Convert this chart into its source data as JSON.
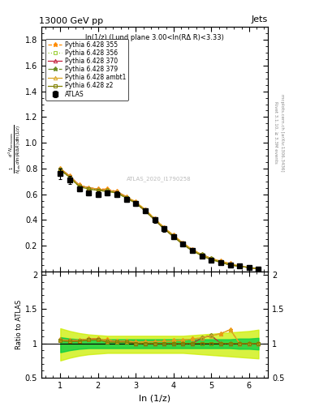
{
  "title": "13000 GeV pp",
  "title_right": "Jets",
  "annotation": "ln(1/z) (Lund plane 3.00<ln(RΔ R)<3.33)",
  "watermark": "ATLAS_2020_I1790258",
  "ylabel_main": "$\\frac{1}{N_{jets}}\\frac{d^2 N_{emissions}}{d\\ln(R/\\Delta R)\\,d\\ln(1/z)}$",
  "ylabel_ratio": "Ratio to ATLAS",
  "xlabel": "ln (1/z)",
  "right_label_top": "Rivet 3.1.10, ≥ 3.3M events",
  "right_label_bot": "mcplots.cern.ch [arXiv:1306.3436]",
  "xlim": [
    0.5,
    6.5
  ],
  "ylim_main": [
    0.0,
    1.9
  ],
  "ylim_ratio": [
    0.5,
    2.05
  ],
  "yticks_main": [
    0.2,
    0.4,
    0.6,
    0.8,
    1.0,
    1.2,
    1.4,
    1.6,
    1.8
  ],
  "yticks_ratio": [
    0.5,
    1.0,
    1.5,
    2.0
  ],
  "x_data": [
    1.0,
    1.25,
    1.5,
    1.75,
    2.0,
    2.25,
    2.5,
    2.75,
    3.0,
    3.25,
    3.5,
    3.75,
    4.0,
    4.25,
    4.5,
    4.75,
    5.0,
    5.25,
    5.5,
    5.75,
    6.0,
    6.25
  ],
  "atlas_y": [
    0.76,
    0.71,
    0.64,
    0.61,
    0.6,
    0.61,
    0.6,
    0.56,
    0.53,
    0.47,
    0.4,
    0.33,
    0.27,
    0.21,
    0.16,
    0.12,
    0.09,
    0.07,
    0.05,
    0.04,
    0.03,
    0.02
  ],
  "atlas_yerr": [
    0.04,
    0.03,
    0.02,
    0.02,
    0.02,
    0.02,
    0.02,
    0.02,
    0.02,
    0.02,
    0.02,
    0.02,
    0.02,
    0.01,
    0.01,
    0.01,
    0.01,
    0.01,
    0.005,
    0.005,
    0.005,
    0.005
  ],
  "py355_y": [
    0.8,
    0.74,
    0.67,
    0.65,
    0.64,
    0.64,
    0.62,
    0.58,
    0.54,
    0.48,
    0.41,
    0.34,
    0.28,
    0.22,
    0.17,
    0.13,
    0.1,
    0.08,
    0.06,
    0.04,
    0.03,
    0.02
  ],
  "py356_y": [
    0.79,
    0.73,
    0.66,
    0.64,
    0.63,
    0.63,
    0.61,
    0.57,
    0.53,
    0.47,
    0.4,
    0.33,
    0.27,
    0.21,
    0.16,
    0.13,
    0.1,
    0.07,
    0.05,
    0.04,
    0.03,
    0.02
  ],
  "py370_y": [
    0.8,
    0.74,
    0.67,
    0.65,
    0.64,
    0.63,
    0.62,
    0.58,
    0.53,
    0.47,
    0.4,
    0.33,
    0.27,
    0.21,
    0.16,
    0.13,
    0.1,
    0.07,
    0.05,
    0.04,
    0.03,
    0.02
  ],
  "py379_y": [
    0.79,
    0.73,
    0.66,
    0.64,
    0.63,
    0.63,
    0.61,
    0.57,
    0.53,
    0.47,
    0.4,
    0.33,
    0.27,
    0.21,
    0.16,
    0.13,
    0.1,
    0.07,
    0.05,
    0.04,
    0.03,
    0.02
  ],
  "pyambt1_y": [
    0.8,
    0.74,
    0.67,
    0.65,
    0.64,
    0.63,
    0.62,
    0.58,
    0.54,
    0.48,
    0.41,
    0.34,
    0.28,
    0.22,
    0.17,
    0.13,
    0.1,
    0.08,
    0.06,
    0.04,
    0.03,
    0.02
  ],
  "pyz2_y": [
    0.79,
    0.73,
    0.66,
    0.64,
    0.63,
    0.62,
    0.61,
    0.57,
    0.53,
    0.47,
    0.4,
    0.33,
    0.27,
    0.21,
    0.16,
    0.12,
    0.09,
    0.07,
    0.05,
    0.04,
    0.03,
    0.02
  ],
  "color_355": "#FF8C00",
  "color_356": "#9ACD32",
  "color_370": "#C41E3A",
  "color_379": "#6B8E23",
  "color_ambt1": "#DAA520",
  "color_z2": "#808000",
  "color_atlas": "#000000",
  "color_band_inner": "#00CC44",
  "color_band_outer": "#CCEE00",
  "ratio_band_outer_lo": [
    0.75,
    0.79,
    0.82,
    0.84,
    0.85,
    0.86,
    0.86,
    0.86,
    0.86,
    0.86,
    0.86,
    0.86,
    0.86,
    0.86,
    0.85,
    0.84,
    0.83,
    0.82,
    0.81,
    0.8,
    0.79,
    0.78
  ],
  "ratio_band_outer_hi": [
    1.22,
    1.18,
    1.15,
    1.13,
    1.12,
    1.11,
    1.11,
    1.11,
    1.11,
    1.11,
    1.11,
    1.11,
    1.11,
    1.11,
    1.12,
    1.13,
    1.14,
    1.15,
    1.16,
    1.17,
    1.18,
    1.2
  ],
  "ratio_band_inner_lo": [
    0.87,
    0.9,
    0.92,
    0.93,
    0.93,
    0.93,
    0.93,
    0.93,
    0.93,
    0.93,
    0.93,
    0.93,
    0.93,
    0.93,
    0.93,
    0.93,
    0.93,
    0.93,
    0.93,
    0.92,
    0.92,
    0.91
  ],
  "ratio_band_inner_hi": [
    1.09,
    1.07,
    1.06,
    1.06,
    1.06,
    1.06,
    1.06,
    1.06,
    1.06,
    1.06,
    1.06,
    1.06,
    1.06,
    1.06,
    1.06,
    1.06,
    1.06,
    1.06,
    1.06,
    1.07,
    1.07,
    1.08
  ]
}
